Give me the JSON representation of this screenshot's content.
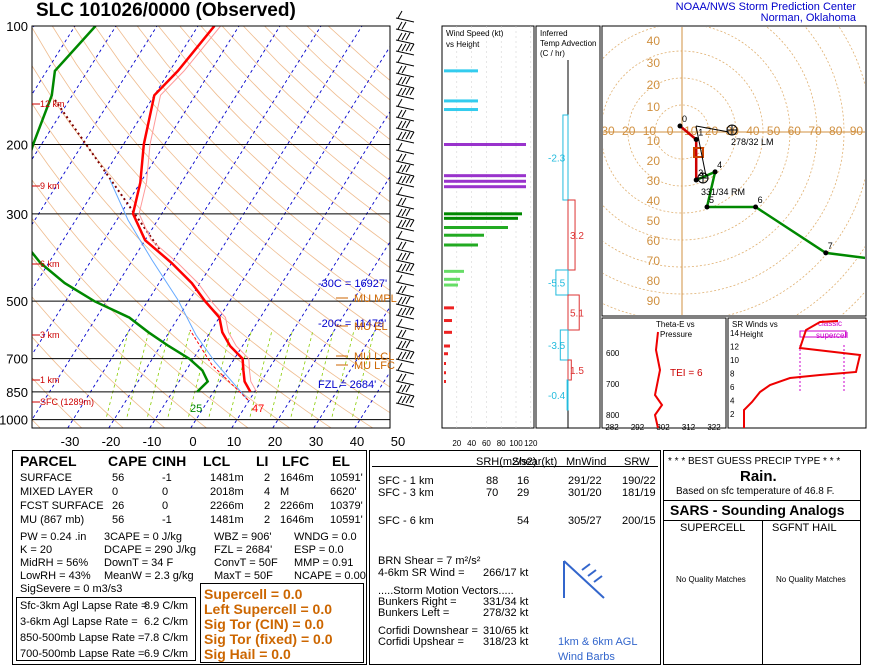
{
  "header": {
    "title": "SLC   101026/0000  (Observed)",
    "credit_line1": "NOAA/NWS Storm Prediction Center",
    "credit_line2": "Norman, Oklahoma"
  },
  "colors": {
    "temp": "#ff0000",
    "dewpoint": "#008800",
    "parcel": "#ff0000",
    "mixing": "#88cc00",
    "dry_adiabat": "#e8a060",
    "isotherm": "#0000cc",
    "hodograph": "#008800",
    "sars": "#0000ff",
    "sig": "#cc6600"
  },
  "chart_data": [
    {
      "type": "line",
      "name": "skew-t",
      "pressure_levels": [
        "100",
        "200",
        "300",
        "500",
        "700",
        "850",
        "1000"
      ],
      "temp_ticks": [
        "-30",
        "-20",
        "-10",
        "0",
        "10",
        "20",
        "30",
        "40",
        "50"
      ],
      "height_labels": [
        "12 km",
        "9 km",
        "6 km",
        "3 km",
        "1 km",
        "SFC (1289m)"
      ],
      "annotations": {
        "wet_bulb_30": "-30C = 16927'",
        "wet_bulb_20": "-20C = 11479'",
        "fzl": "FZL = 2684'",
        "mu_mpl": "MU MPL",
        "mu_el": "MU EL",
        "mu_lcl": "MU LCL",
        "mu_lfc": "MU LFC",
        "sfc_dew": "25",
        "sfc_temp": "47"
      },
      "temperature": [
        [
          100,
          -56
        ],
        [
          130,
          -58
        ],
        [
          150,
          -60
        ],
        [
          200,
          -55
        ],
        [
          250,
          -50
        ],
        [
          300,
          -47
        ],
        [
          350,
          -40
        ],
        [
          400,
          -30
        ],
        [
          450,
          -22
        ],
        [
          500,
          -16
        ],
        [
          550,
          -10
        ],
        [
          600,
          -7
        ],
        [
          650,
          -3
        ],
        [
          700,
          2
        ],
        [
          750,
          4
        ],
        [
          800,
          6
        ],
        [
          850,
          9
        ]
      ],
      "dewpoint": [
        [
          100,
          -85
        ],
        [
          130,
          -88
        ],
        [
          150,
          -85
        ],
        [
          200,
          -82
        ],
        [
          250,
          -79
        ],
        [
          300,
          -76
        ],
        [
          350,
          -70
        ],
        [
          400,
          -62
        ],
        [
          450,
          -53
        ],
        [
          500,
          -43
        ],
        [
          550,
          -32
        ],
        [
          600,
          -25
        ],
        [
          650,
          -18
        ],
        [
          700,
          -11
        ],
        [
          750,
          -6
        ],
        [
          800,
          -3
        ],
        [
          850,
          -4
        ]
      ]
    },
    {
      "type": "bar",
      "name": "wind-speed-vs-height",
      "title": "Wind Speed (kt) vs Height",
      "x_ticks": [
        "20",
        "40",
        "60",
        "80",
        "100",
        "120"
      ],
      "xlim": [
        0,
        120
      ],
      "bars": [
        [
          130,
          34
        ],
        [
          155,
          34
        ],
        [
          163,
          34
        ],
        [
          200,
          82
        ],
        [
          240,
          82
        ],
        [
          248,
          82
        ],
        [
          256,
          82
        ],
        [
          300,
          78
        ],
        [
          308,
          74
        ],
        [
          325,
          64
        ],
        [
          340,
          40
        ],
        [
          360,
          34
        ],
        [
          420,
          20
        ],
        [
          440,
          16
        ],
        [
          455,
          14
        ],
        [
          520,
          10
        ],
        [
          560,
          8
        ],
        [
          600,
          8
        ],
        [
          650,
          6
        ],
        [
          680,
          4
        ],
        [
          720,
          2
        ],
        [
          760,
          2
        ],
        [
          800,
          2
        ]
      ]
    },
    {
      "type": "line",
      "name": "inferred-temp-advection",
      "title": "Inferred Temp Advection (C / hr)",
      "values": [
        "-2.3",
        "3.2",
        "-5.5",
        "5.1",
        "-3.5",
        "1.5",
        "-0.4"
      ]
    },
    {
      "type": "scatter",
      "name": "hodograph",
      "tick_labels": [
        "30",
        "20",
        "10",
        "0",
        "10",
        "20",
        "30",
        "40",
        "50",
        "60",
        "70",
        "80",
        "90"
      ],
      "ring_labels": [
        "40",
        "30",
        "20",
        "10",
        "10",
        "20",
        "30",
        "40",
        "50",
        "60",
        "70",
        "80",
        "90"
      ],
      "points": [
        [
          "0",
          [
            0,
            0
          ]
        ],
        [
          "1",
          [
            6,
            5
          ]
        ],
        [
          "3",
          [
            6,
            20
          ]
        ],
        [
          "4",
          [
            13,
            17
          ]
        ],
        [
          "5",
          [
            10,
            30
          ]
        ],
        [
          "6",
          [
            28,
            30
          ]
        ],
        [
          "7",
          [
            54,
            47
          ]
        ]
      ],
      "bunkers_lm_label": "278/32 LM",
      "bunkers_rm_label": "331/34 RM"
    },
    {
      "type": "line",
      "name": "theta-e-vs-pressure",
      "title": "Theta-E vs Pressure",
      "x_ticks": [
        "282",
        "292",
        "302",
        "312",
        "322"
      ],
      "y_ticks": [
        "600",
        "700",
        "800"
      ],
      "tei": "TEI = 6"
    },
    {
      "type": "line",
      "name": "sr-winds-vs-height",
      "title": "SR Winds vs Height",
      "y_ticks": [
        "14",
        "12",
        "10",
        "8",
        "6",
        "4",
        "2"
      ],
      "classic": "classic",
      "supercell": "supercell"
    }
  ],
  "parcel_table": {
    "headers": [
      "PARCEL",
      "CAPE",
      "CINH",
      "LCL",
      "LI",
      "LFC",
      "EL"
    ],
    "rows": [
      [
        "SURFACE",
        "56",
        "-1",
        "1481m",
        "2",
        "1646m",
        "10591'"
      ],
      [
        "MIXED LAYER",
        "0",
        "0",
        "2018m",
        "4",
        "M",
        "6620'"
      ],
      [
        "FCST SURFACE",
        "26",
        "0",
        "2266m",
        "2",
        "2266m",
        "10379'"
      ],
      [
        "MU  (867 mb)",
        "56",
        "-1",
        "1481m",
        "2",
        "1646m",
        "10591'"
      ]
    ]
  },
  "indices": [
    [
      "PW = 0.24 .in",
      "3CAPE = 0 J/kg",
      "WBZ = 906'",
      "WNDG = 0.0"
    ],
    [
      "K = 20",
      "DCAPE = 290 J/kg",
      "FZL = 2684'",
      "ESP = 0.0"
    ],
    [
      "MidRH = 56%",
      "DownT = 34 F",
      "ConvT = 50F",
      "MMP = 0.91"
    ],
    [
      "LowRH = 43%",
      "MeanW = 2.3 g/kg",
      "MaxT = 50F",
      "NCAPE = 0.00"
    ],
    [
      "SigSevere = 0 m3/s3",
      "",
      "",
      ""
    ]
  ],
  "lapse_rates": [
    [
      "Sfc-3km Agl Lapse Rate =",
      "8.9 C/km"
    ],
    [
      "3-6km Agl Lapse Rate =",
      "6.2 C/km"
    ],
    [
      "850-500mb Lapse Rate =",
      "7.8 C/km"
    ],
    [
      "700-500mb Lapse Rate =",
      "6.9 C/km"
    ]
  ],
  "sig_params": [
    "Supercell = 0.0",
    "Left Supercell = 0.0",
    "Sig Tor (CIN) = 0.0",
    "Sig Tor (fixed) = 0.0",
    "Sig Hail = 0.0"
  ],
  "kinematics": {
    "headers": [
      "SRH(m2/s2)",
      "Shear(kt)",
      "MnWind",
      "SRW"
    ],
    "rows": [
      [
        "SFC - 1 km",
        "88",
        "16",
        "291/22",
        "190/22"
      ],
      [
        "SFC - 3 km",
        "70",
        "29",
        "301/20",
        "181/19"
      ],
      [
        "SFC - 6 km",
        "",
        "54",
        "305/27",
        "200/15"
      ]
    ],
    "brn_label": "BRN Shear =  7 m²/s²",
    "sr_wind_label": "4-6km SR Wind =",
    "sr_wind_value": "266/17 kt",
    "storm_motion_title": ".....Storm Motion Vectors.....",
    "bunkers_right_label": "Bunkers Right =",
    "bunkers_right_value": "331/34 kt",
    "bunkers_left_label": "Bunkers Left =",
    "bunkers_left_value": "278/32 kt",
    "corfidi_down_label": "Corfidi Downshear =",
    "corfidi_down_value": "310/65 kt",
    "corfidi_up_label": "Corfidi Upshear =",
    "corfidi_up_value": "318/23 kt",
    "barb_label1": "1km & 6km AGL",
    "barb_label2": "Wind Barbs"
  },
  "precip": {
    "title": "* * * BEST GUESS PRECIP TYPE * * *",
    "type": "Rain.",
    "basis": "Based on sfc temperature of 46.8 F."
  },
  "sars": {
    "title": "SARS - Sounding Analogs",
    "col1": "SUPERCELL",
    "col2": "SGFNT HAIL",
    "msg1": "No Quality Matches",
    "msg2": "No Quality Matches"
  }
}
